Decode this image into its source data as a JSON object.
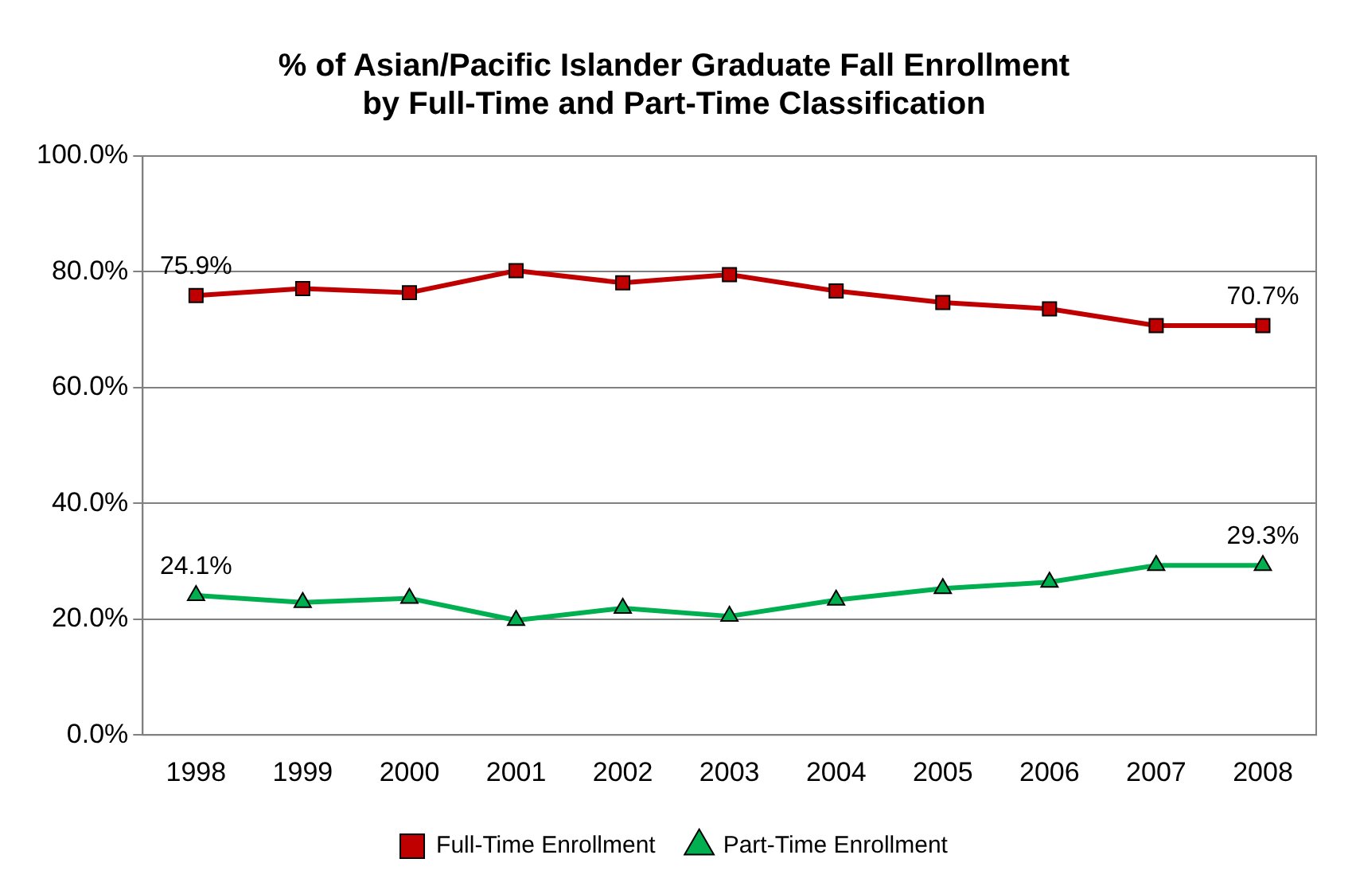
{
  "chart_data": {
    "type": "line",
    "title": "% of Asian/Pacific Islander Graduate Fall Enrollment\nby Full-Time and Part-Time Classification",
    "categories": [
      "1998",
      "1999",
      "2000",
      "2001",
      "2002",
      "2003",
      "2004",
      "2005",
      "2006",
      "2007",
      "2008"
    ],
    "series": [
      {
        "name": "Full-Time Enrollment",
        "color": "#c00000",
        "marker": "square",
        "values": [
          75.9,
          77.1,
          76.4,
          80.2,
          78.1,
          79.5,
          76.7,
          74.7,
          73.6,
          70.7,
          70.7
        ],
        "value_labels": [
          "75.9%",
          null,
          null,
          null,
          null,
          null,
          null,
          null,
          null,
          null,
          "70.7%"
        ]
      },
      {
        "name": "Part-Time Enrollment",
        "color": "#00b050",
        "marker": "triangle",
        "values": [
          24.1,
          22.9,
          23.6,
          19.8,
          21.9,
          20.5,
          23.3,
          25.3,
          26.4,
          29.3,
          29.3
        ],
        "value_labels": [
          "24.1%",
          null,
          null,
          null,
          null,
          null,
          null,
          null,
          null,
          null,
          "29.3%"
        ]
      }
    ],
    "ylim": [
      0,
      100
    ],
    "yticks": [
      {
        "value": 0,
        "label": "0.0%"
      },
      {
        "value": 20,
        "label": "20.0%"
      },
      {
        "value": 40,
        "label": "40.0%"
      },
      {
        "value": 60,
        "label": "60.0%"
      },
      {
        "value": 80,
        "label": "80.0%"
      },
      {
        "value": 100,
        "label": "100.0%"
      }
    ],
    "grid": "y",
    "legend": "bottom",
    "line_style": "solid"
  }
}
